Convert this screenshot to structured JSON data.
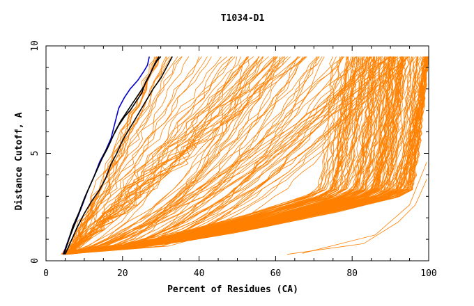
{
  "chart_data": {
    "type": "line",
    "title": "T1034-D1",
    "xlabel": "Percent of Residues (CA)",
    "ylabel": "Distance Cutoff, A",
    "xlim": [
      0,
      100
    ],
    "ylim": [
      0,
      10
    ],
    "xticks": [
      0,
      20,
      40,
      60,
      80,
      100
    ],
    "yticks": [
      0,
      5,
      10
    ],
    "grid": false,
    "legend": "none",
    "colors": {
      "bulk": "#ff8000",
      "highlight_black": "#000000",
      "highlight_blue": "#0000cc"
    },
    "series": [
      {
        "color": "#0000cc",
        "points": [
          [
            4.5,
            0.3
          ],
          [
            5.5,
            0.8
          ],
          [
            6.5,
            1.3
          ],
          [
            8,
            1.9
          ],
          [
            9.5,
            2.6
          ],
          [
            11,
            3.3
          ],
          [
            12.5,
            3.9
          ],
          [
            14,
            4.6
          ],
          [
            15.5,
            5.1
          ],
          [
            17,
            5.7
          ],
          [
            18,
            6.4
          ],
          [
            19,
            7.1
          ],
          [
            20.5,
            7.6
          ],
          [
            22,
            8.0
          ],
          [
            24,
            8.4
          ],
          [
            25.5,
            8.8
          ],
          [
            26.5,
            9.1
          ],
          [
            27,
            9.5
          ]
        ]
      },
      {
        "color": "#000000",
        "points": [
          [
            4.6,
            0.3
          ],
          [
            5.8,
            0.9
          ],
          [
            7,
            1.6
          ],
          [
            8.5,
            2.2
          ],
          [
            10,
            2.9
          ],
          [
            11.5,
            3.5
          ],
          [
            13,
            4.1
          ],
          [
            14.5,
            4.7
          ],
          [
            16,
            5.2
          ],
          [
            17.5,
            5.8
          ],
          [
            19,
            6.3
          ],
          [
            20.5,
            6.7
          ],
          [
            22,
            7.0
          ],
          [
            23.5,
            7.4
          ],
          [
            25,
            7.8
          ],
          [
            26,
            8.3
          ],
          [
            27.5,
            8.8
          ],
          [
            28.5,
            9.2
          ],
          [
            29.5,
            9.5
          ]
        ]
      },
      {
        "color": "#000000",
        "points": [
          [
            4.7,
            0.3
          ],
          [
            6,
            1.0
          ],
          [
            7.5,
            1.7
          ],
          [
            9,
            2.4
          ],
          [
            10.5,
            3.1
          ],
          [
            12,
            3.7
          ],
          [
            13.5,
            4.3
          ],
          [
            15,
            4.9
          ],
          [
            16.5,
            5.4
          ],
          [
            18,
            6.0
          ],
          [
            19.5,
            6.5
          ],
          [
            21,
            6.9
          ],
          [
            22.5,
            7.3
          ],
          [
            24,
            7.7
          ],
          [
            25.5,
            8.1
          ],
          [
            27,
            8.6
          ],
          [
            28,
            9.0
          ],
          [
            29,
            9.3
          ],
          [
            30,
            9.5
          ]
        ]
      },
      {
        "color": "#000000",
        "points": [
          [
            5,
            0.3
          ],
          [
            6.5,
            0.9
          ],
          [
            8,
            1.5
          ],
          [
            10,
            2.2
          ],
          [
            12,
            2.8
          ],
          [
            14,
            3.3
          ],
          [
            15.5,
            3.8
          ],
          [
            17,
            4.5
          ],
          [
            18.5,
            5.0
          ],
          [
            20,
            5.6
          ],
          [
            22,
            6.2
          ],
          [
            24,
            6.8
          ],
          [
            26,
            7.4
          ],
          [
            28,
            8.0
          ],
          [
            30,
            8.5
          ],
          [
            31.5,
            9.0
          ],
          [
            33,
            9.5
          ]
        ]
      }
    ]
  }
}
